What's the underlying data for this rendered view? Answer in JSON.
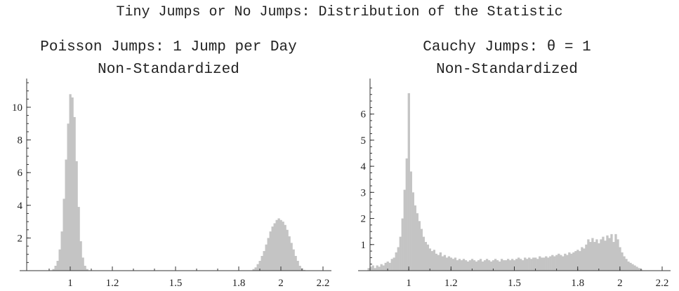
{
  "title": "Tiny Jumps or No Jumps: Distribution of the Statistic",
  "chart_data": [
    {
      "type": "bar",
      "title": "Poisson Jumps: 1 Jump per Day",
      "subtitle": "Non-Standardized",
      "xlabel": "",
      "ylabel": "",
      "xlim": [
        0.8,
        2.2
      ],
      "ylim": [
        0,
        11.5
      ],
      "x_ticks": [
        1,
        1.2,
        1.5,
        1.8,
        2,
        2.2
      ],
      "x_tick_labels": [
        "1",
        "1.2",
        "1.5",
        "1.8",
        "2",
        "2.2"
      ],
      "y_ticks": [
        2,
        4,
        6,
        8,
        10
      ],
      "y_tick_labels": [
        "2",
        "4",
        "6",
        "8",
        "10"
      ],
      "bar_color": "#c4c4c4",
      "bin_width": 0.01,
      "bins": [
        [
          0.92,
          0.1
        ],
        [
          0.93,
          0.3
        ],
        [
          0.94,
          0.6
        ],
        [
          0.95,
          1.3
        ],
        [
          0.96,
          2.4
        ],
        [
          0.97,
          4.4
        ],
        [
          0.98,
          6.8
        ],
        [
          0.99,
          9.0
        ],
        [
          1.0,
          10.8
        ],
        [
          1.01,
          10.6
        ],
        [
          1.02,
          9.4
        ],
        [
          1.03,
          6.7
        ],
        [
          1.04,
          3.9
        ],
        [
          1.05,
          1.8
        ],
        [
          1.06,
          0.8
        ],
        [
          1.07,
          0.3
        ],
        [
          1.08,
          0.1
        ],
        [
          1.87,
          0.1
        ],
        [
          1.88,
          0.2
        ],
        [
          1.89,
          0.4
        ],
        [
          1.9,
          0.6
        ],
        [
          1.91,
          0.9
        ],
        [
          1.92,
          1.2
        ],
        [
          1.93,
          1.6
        ],
        [
          1.94,
          2.0
        ],
        [
          1.95,
          2.4
        ],
        [
          1.96,
          2.7
        ],
        [
          1.97,
          2.9
        ],
        [
          1.98,
          3.1
        ],
        [
          1.99,
          3.2
        ],
        [
          2.0,
          3.1
        ],
        [
          2.01,
          3.0
        ],
        [
          2.02,
          2.8
        ],
        [
          2.03,
          2.5
        ],
        [
          2.04,
          2.1
        ],
        [
          2.05,
          1.7
        ],
        [
          2.06,
          1.3
        ],
        [
          2.07,
          0.9
        ],
        [
          2.08,
          0.6
        ],
        [
          2.09,
          0.3
        ],
        [
          2.1,
          0.15
        ],
        [
          2.11,
          0.05
        ]
      ]
    },
    {
      "type": "bar",
      "title": "Cauchy Jumps: θ = 1",
      "subtitle": "Non-Standardized",
      "xlabel": "",
      "ylabel": "",
      "xlim": [
        0.8,
        2.2
      ],
      "ylim": [
        0,
        7.2
      ],
      "x_ticks": [
        1,
        1.2,
        1.5,
        1.8,
        2,
        2.2
      ],
      "x_tick_labels": [
        "1",
        "1.2",
        "1.5",
        "1.8",
        "2",
        "2.2"
      ],
      "y_ticks": [
        1,
        2,
        3,
        4,
        5,
        6
      ],
      "y_tick_labels": [
        "1",
        "2",
        "3",
        "4",
        "5",
        "6"
      ],
      "bar_color": "#c4c4c4",
      "bin_width": 0.01,
      "bins": [
        [
          0.81,
          0.1
        ],
        [
          0.82,
          0.15
        ],
        [
          0.83,
          0.2
        ],
        [
          0.84,
          0.1
        ],
        [
          0.85,
          0.2
        ],
        [
          0.86,
          0.15
        ],
        [
          0.87,
          0.25
        ],
        [
          0.88,
          0.2
        ],
        [
          0.89,
          0.3
        ],
        [
          0.9,
          0.35
        ],
        [
          0.91,
          0.3
        ],
        [
          0.92,
          0.45
        ],
        [
          0.93,
          0.5
        ],
        [
          0.94,
          0.7
        ],
        [
          0.95,
          0.9
        ],
        [
          0.96,
          1.3
        ],
        [
          0.97,
          2.0
        ],
        [
          0.98,
          3.1
        ],
        [
          0.99,
          4.3
        ],
        [
          1.0,
          6.8
        ],
        [
          1.01,
          3.8
        ],
        [
          1.02,
          3.0
        ],
        [
          1.03,
          2.5
        ],
        [
          1.04,
          2.2
        ],
        [
          1.05,
          1.9
        ],
        [
          1.06,
          1.6
        ],
        [
          1.07,
          1.3
        ],
        [
          1.08,
          1.1
        ],
        [
          1.09,
          1.0
        ],
        [
          1.1,
          0.85
        ],
        [
          1.11,
          0.75
        ],
        [
          1.12,
          0.8
        ],
        [
          1.13,
          0.65
        ],
        [
          1.14,
          0.6
        ],
        [
          1.15,
          0.7
        ],
        [
          1.16,
          0.55
        ],
        [
          1.17,
          0.6
        ],
        [
          1.18,
          0.5
        ],
        [
          1.19,
          0.55
        ],
        [
          1.2,
          0.5
        ],
        [
          1.21,
          0.45
        ],
        [
          1.22,
          0.5
        ],
        [
          1.23,
          0.4
        ],
        [
          1.24,
          0.45
        ],
        [
          1.25,
          0.4
        ],
        [
          1.26,
          0.45
        ],
        [
          1.27,
          0.4
        ],
        [
          1.28,
          0.35
        ],
        [
          1.29,
          0.4
        ],
        [
          1.3,
          0.45
        ],
        [
          1.31,
          0.4
        ],
        [
          1.32,
          0.35
        ],
        [
          1.33,
          0.4
        ],
        [
          1.34,
          0.45
        ],
        [
          1.35,
          0.35
        ],
        [
          1.36,
          0.4
        ],
        [
          1.37,
          0.45
        ],
        [
          1.38,
          0.4
        ],
        [
          1.39,
          0.35
        ],
        [
          1.4,
          0.4
        ],
        [
          1.41,
          0.45
        ],
        [
          1.42,
          0.4
        ],
        [
          1.43,
          0.35
        ],
        [
          1.44,
          0.45
        ],
        [
          1.45,
          0.4
        ],
        [
          1.46,
          0.4
        ],
        [
          1.47,
          0.45
        ],
        [
          1.48,
          0.4
        ],
        [
          1.49,
          0.45
        ],
        [
          1.5,
          0.4
        ],
        [
          1.51,
          0.45
        ],
        [
          1.52,
          0.5
        ],
        [
          1.53,
          0.45
        ],
        [
          1.54,
          0.4
        ],
        [
          1.55,
          0.5
        ],
        [
          1.56,
          0.45
        ],
        [
          1.57,
          0.5
        ],
        [
          1.58,
          0.45
        ],
        [
          1.59,
          0.5
        ],
        [
          1.6,
          0.5
        ],
        [
          1.61,
          0.45
        ],
        [
          1.62,
          0.55
        ],
        [
          1.63,
          0.5
        ],
        [
          1.64,
          0.5
        ],
        [
          1.65,
          0.55
        ],
        [
          1.66,
          0.5
        ],
        [
          1.67,
          0.55
        ],
        [
          1.68,
          0.6
        ],
        [
          1.69,
          0.55
        ],
        [
          1.7,
          0.6
        ],
        [
          1.71,
          0.65
        ],
        [
          1.72,
          0.6
        ],
        [
          1.73,
          0.55
        ],
        [
          1.74,
          0.65
        ],
        [
          1.75,
          0.6
        ],
        [
          1.76,
          0.7
        ],
        [
          1.77,
          0.65
        ],
        [
          1.78,
          0.7
        ],
        [
          1.79,
          0.75
        ],
        [
          1.8,
          0.8
        ],
        [
          1.81,
          0.75
        ],
        [
          1.82,
          0.9
        ],
        [
          1.83,
          0.85
        ],
        [
          1.84,
          1.0
        ],
        [
          1.85,
          1.2
        ],
        [
          1.86,
          1.1
        ],
        [
          1.87,
          1.25
        ],
        [
          1.88,
          1.1
        ],
        [
          1.89,
          1.2
        ],
        [
          1.9,
          1.05
        ],
        [
          1.91,
          1.2
        ],
        [
          1.92,
          1.3
        ],
        [
          1.93,
          1.15
        ],
        [
          1.94,
          1.35
        ],
        [
          1.95,
          1.25
        ],
        [
          1.96,
          1.4
        ],
        [
          1.97,
          1.1
        ],
        [
          1.98,
          1.4
        ],
        [
          1.99,
          1.2
        ],
        [
          2.0,
          0.9
        ],
        [
          2.01,
          0.7
        ],
        [
          2.02,
          0.55
        ],
        [
          2.03,
          0.45
        ],
        [
          2.04,
          0.35
        ],
        [
          2.05,
          0.3
        ],
        [
          2.06,
          0.25
        ],
        [
          2.07,
          0.2
        ],
        [
          2.08,
          0.15
        ],
        [
          2.09,
          0.1
        ],
        [
          2.1,
          0.05
        ]
      ]
    }
  ]
}
